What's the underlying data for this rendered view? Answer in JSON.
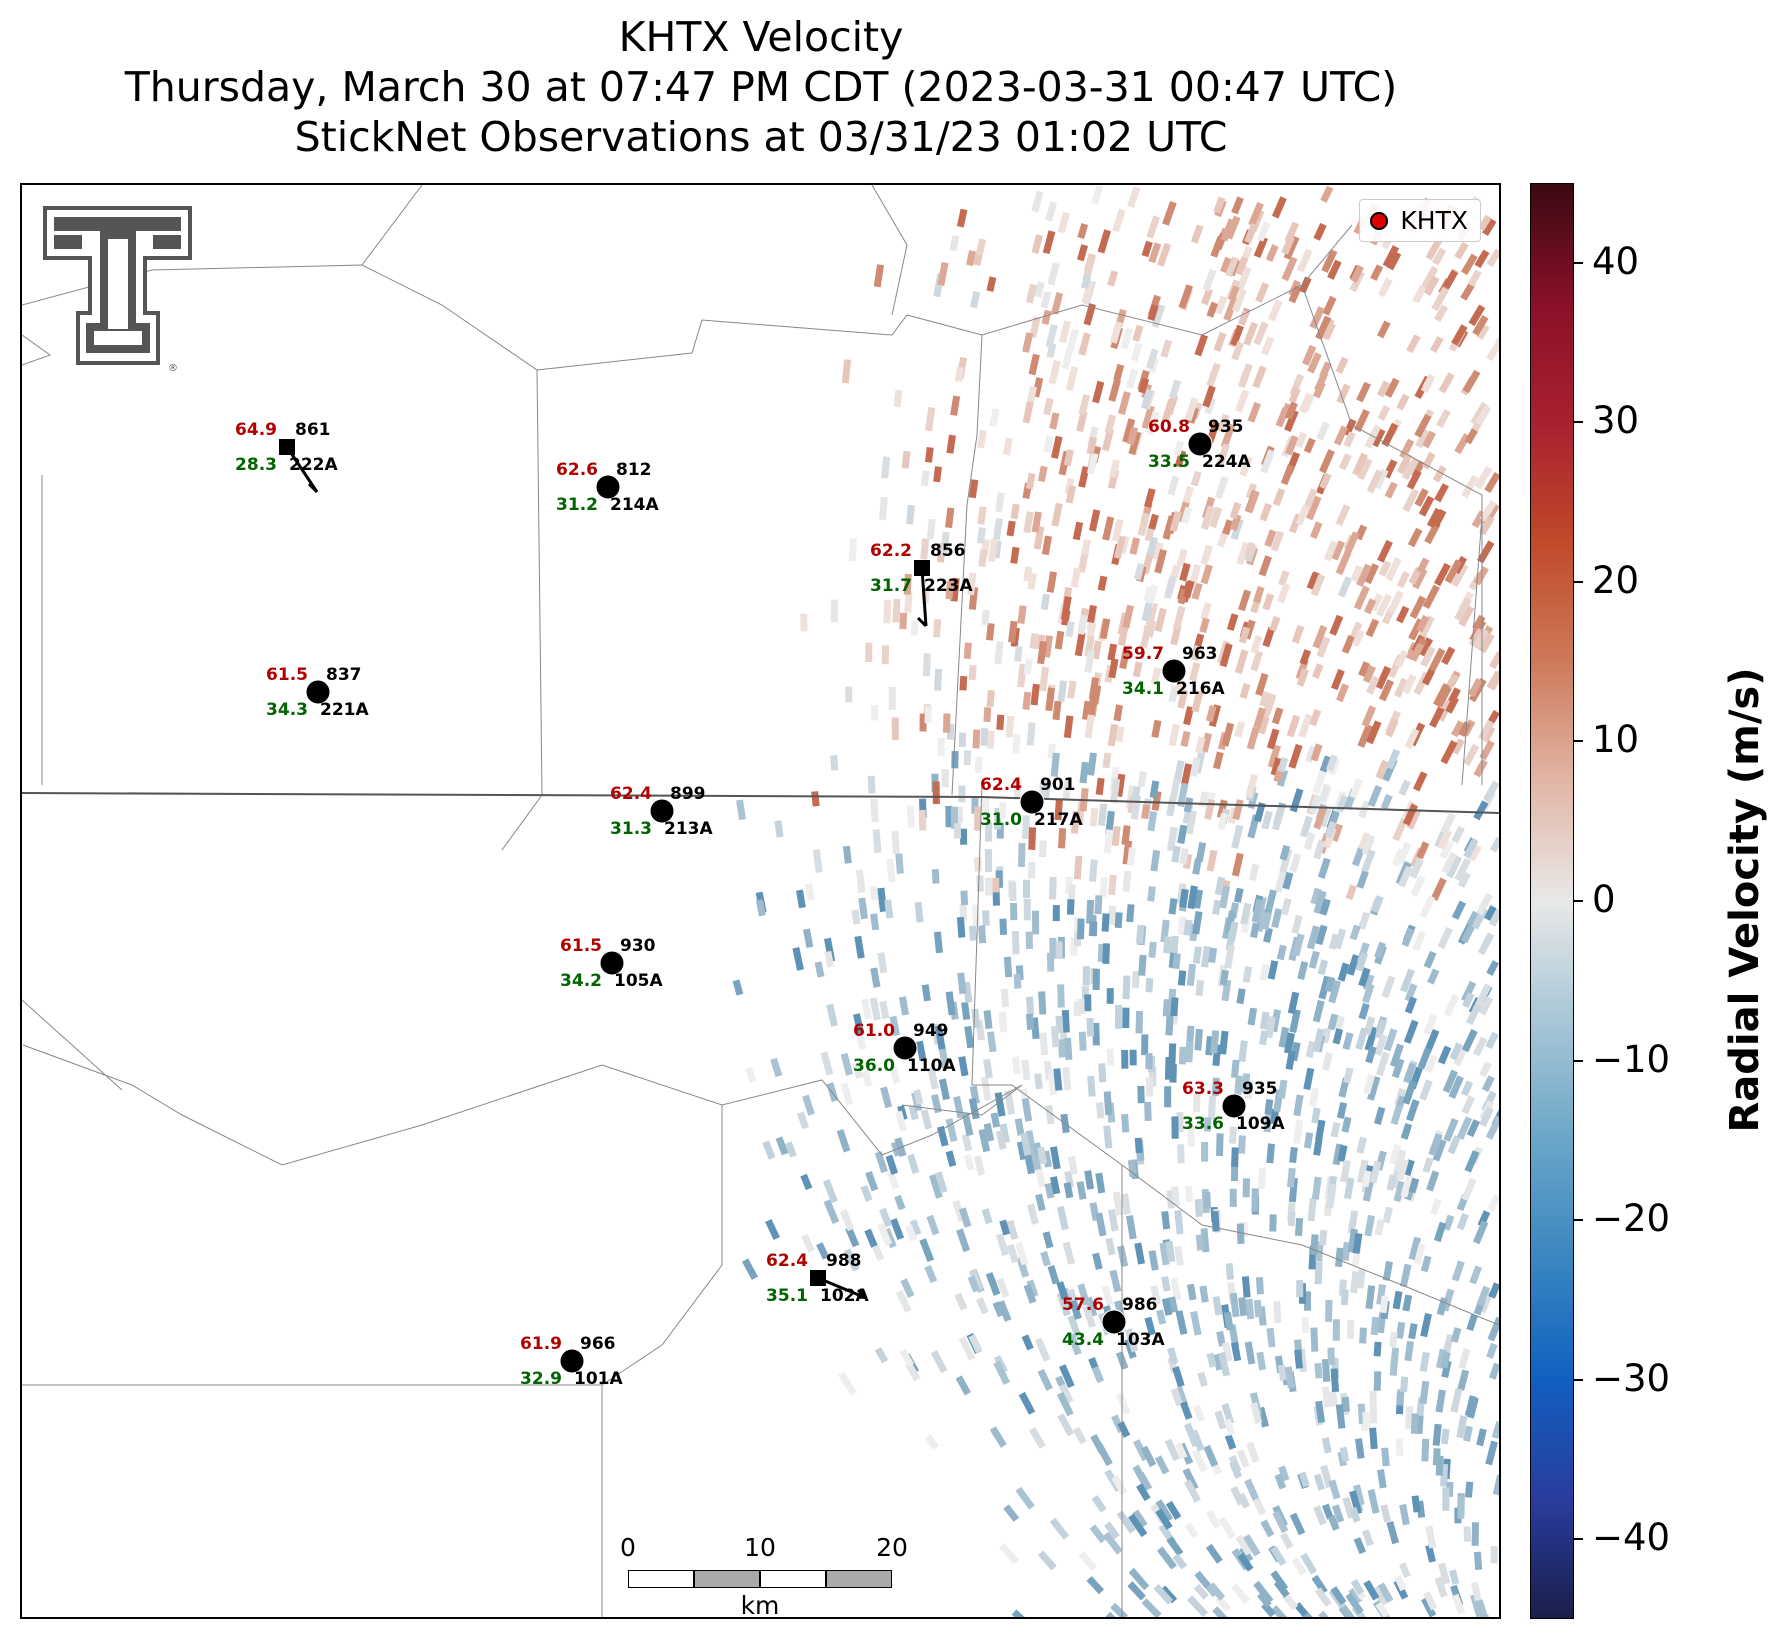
{
  "title": {
    "line1": "KHTX Velocity",
    "line2": "Thursday, March 30 at 07:47 PM CDT (2023-03-31 00:47 UTC)",
    "line3": "StickNet Observations at 03/31/23 01:02 UTC"
  },
  "legend": {
    "label": "KHTX",
    "marker_color": "#e00000"
  },
  "colorbar": {
    "title": "Radial Velocity (m/s)",
    "range": [
      -45,
      45
    ],
    "ticks": [
      "40",
      "30",
      "20",
      "10",
      "0",
      "−10",
      "−20",
      "−30",
      "−40"
    ],
    "colors": [
      "#1a1f4a",
      "#2a3c9e",
      "#1060c0",
      "#3a86c0",
      "#6aa6c8",
      "#a8c6d6",
      "#e8e8e8",
      "#e2b6a6",
      "#cd7a5a",
      "#c04a2a",
      "#a82030",
      "#8a1028",
      "#3a0a12"
    ]
  },
  "scalebar": {
    "labels": [
      "0",
      "10",
      "20"
    ],
    "unit": "km"
  },
  "logo": {
    "name": "texas-tech-double-t-logo",
    "color": "#555555"
  },
  "observations": [
    {
      "id": "222A",
      "temp": "64.9",
      "dew": "28.3",
      "pressure": "861"
    },
    {
      "id": "214A",
      "temp": "62.6",
      "dew": "31.2",
      "pressure": "812"
    },
    {
      "id": "223A",
      "temp": "62.2",
      "dew": "31.7",
      "pressure": "856"
    },
    {
      "id": "224A",
      "temp": "60.8",
      "dew": "33.5",
      "pressure": "935"
    },
    {
      "id": "221A",
      "temp": "61.5",
      "dew": "34.3",
      "pressure": "837"
    },
    {
      "id": "216A",
      "temp": "59.7",
      "dew": "34.1",
      "pressure": "963"
    },
    {
      "id": "213A",
      "temp": "62.4",
      "dew": "31.3",
      "pressure": "899"
    },
    {
      "id": "217A",
      "temp": "62.4",
      "dew": "31.0",
      "pressure": "901"
    },
    {
      "id": "105A",
      "temp": "61.5",
      "dew": "34.2",
      "pressure": "930"
    },
    {
      "id": "110A",
      "temp": "61.0",
      "dew": "36.0",
      "pressure": "949"
    },
    {
      "id": "109A",
      "temp": "63.3",
      "dew": "33.6",
      "pressure": "935"
    },
    {
      "id": "102A",
      "temp": "62.4",
      "dew": "35.1",
      "pressure": "988"
    },
    {
      "id": "103A",
      "temp": "57.6",
      "dew": "43.4",
      "pressure": "986"
    },
    {
      "id": "101A",
      "temp": "61.9",
      "dew": "32.9",
      "pressure": "966"
    }
  ]
}
